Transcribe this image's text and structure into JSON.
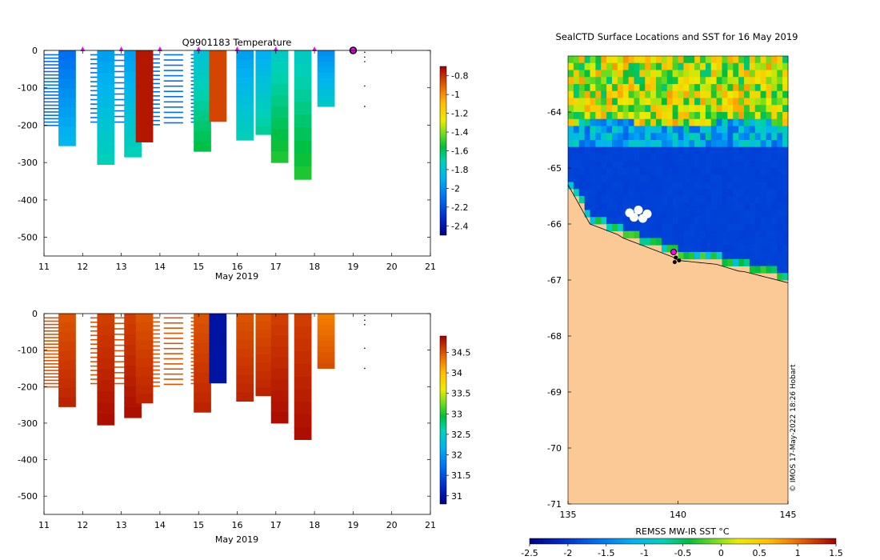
{
  "chart_data": [
    {
      "type": "heatmap",
      "name": "temperature-section",
      "title": "Q9901183  Temperature",
      "xlabel": "May 2019",
      "ylabel": "",
      "xlim": [
        11,
        21
      ],
      "ylim": [
        -550,
        0
      ],
      "xticks": [
        "11",
        "12",
        "13",
        "14",
        "15",
        "16",
        "17",
        "18",
        "19",
        "20",
        "21"
      ],
      "yticks": [
        "0",
        "-100",
        "-200",
        "-300",
        "-400",
        "-500"
      ],
      "colorbar": {
        "min": -2.5,
        "max": -0.7,
        "ticks": [
          "-0.8",
          "-1",
          "-1.2",
          "-1.4",
          "-1.6",
          "-1.8",
          "-2",
          "-2.2",
          "-2.4"
        ]
      },
      "surface_markers_x": [
        12,
        13,
        14,
        15,
        16,
        17,
        18
      ],
      "current_position_x": 19,
      "profiles": [
        {
          "x": 11.6,
          "max_depth": -255,
          "value": -2.1
        },
        {
          "x": 12.6,
          "max_depth": -305,
          "value": -1.95
        },
        {
          "x": 13.3,
          "max_depth": -285,
          "value": -1.95
        },
        {
          "x": 13.6,
          "max_depth": -245,
          "value": -0.75
        },
        {
          "x": 15.1,
          "max_depth": -270,
          "value": -1.8
        },
        {
          "x": 15.5,
          "max_depth": -190,
          "value": -0.85
        },
        {
          "x": 16.2,
          "max_depth": -240,
          "value": -1.95
        },
        {
          "x": 16.7,
          "max_depth": -225,
          "value": -1.9
        },
        {
          "x": 17.1,
          "max_depth": -300,
          "value": -1.75
        },
        {
          "x": 17.7,
          "max_depth": -345,
          "value": -1.75
        },
        {
          "x": 18.3,
          "max_depth": -150,
          "value": -2.0
        }
      ]
    },
    {
      "type": "heatmap",
      "name": "salinity-section",
      "title": "",
      "xlabel": "May 2019",
      "ylabel": "",
      "xlim": [
        11,
        21
      ],
      "ylim": [
        -550,
        0
      ],
      "xticks": [
        "11",
        "12",
        "13",
        "14",
        "15",
        "16",
        "17",
        "18",
        "19",
        "20",
        "21"
      ],
      "yticks": [
        "0",
        "-100",
        "-200",
        "-300",
        "-400",
        "-500"
      ],
      "colorbar": {
        "min": 30.8,
        "max": 34.9,
        "ticks": [
          "34.5",
          "34",
          "33.5",
          "33",
          "32.5",
          "32",
          "31.5",
          "31"
        ]
      },
      "profiles": [
        {
          "x": 11.6,
          "max_depth": -255,
          "value": 34.5
        },
        {
          "x": 12.6,
          "max_depth": -305,
          "value": 34.6
        },
        {
          "x": 13.3,
          "max_depth": -285,
          "value": 34.6
        },
        {
          "x": 13.6,
          "max_depth": -245,
          "value": 34.5
        },
        {
          "x": 15.1,
          "max_depth": -270,
          "value": 34.5
        },
        {
          "x": 15.5,
          "max_depth": -190,
          "value": 31.0
        },
        {
          "x": 16.2,
          "max_depth": -240,
          "value": 34.5
        },
        {
          "x": 16.7,
          "max_depth": -225,
          "value": 34.5
        },
        {
          "x": 17.1,
          "max_depth": -300,
          "value": 34.6
        },
        {
          "x": 17.7,
          "max_depth": -345,
          "value": 34.6
        },
        {
          "x": 18.3,
          "max_depth": -150,
          "value": 34.3
        }
      ]
    },
    {
      "type": "heatmap",
      "name": "sst-map",
      "title": "SealCTD Surface Locations and SST for 16 May 2019",
      "xlim": [
        135,
        145
      ],
      "ylim": [
        -71,
        -63
      ],
      "xticks": [
        "135",
        "140",
        "145"
      ],
      "yticks": [
        "-64",
        "-65",
        "-66",
        "-67",
        "-68",
        "-69",
        "-70",
        "-71"
      ],
      "colorbar": {
        "label": "REMSS MW-IR SST °C",
        "min": -2.5,
        "max": 1.5,
        "ticks": [
          "-2.5",
          "-2",
          "-1.5",
          "-1",
          "-0.5",
          "0",
          "0.5",
          "1",
          "1.5"
        ]
      },
      "seal_position": {
        "lon": 139.8,
        "lat": -66.5
      },
      "credit": "© IMOS 17-May-2022 18:26 Hobart"
    }
  ]
}
